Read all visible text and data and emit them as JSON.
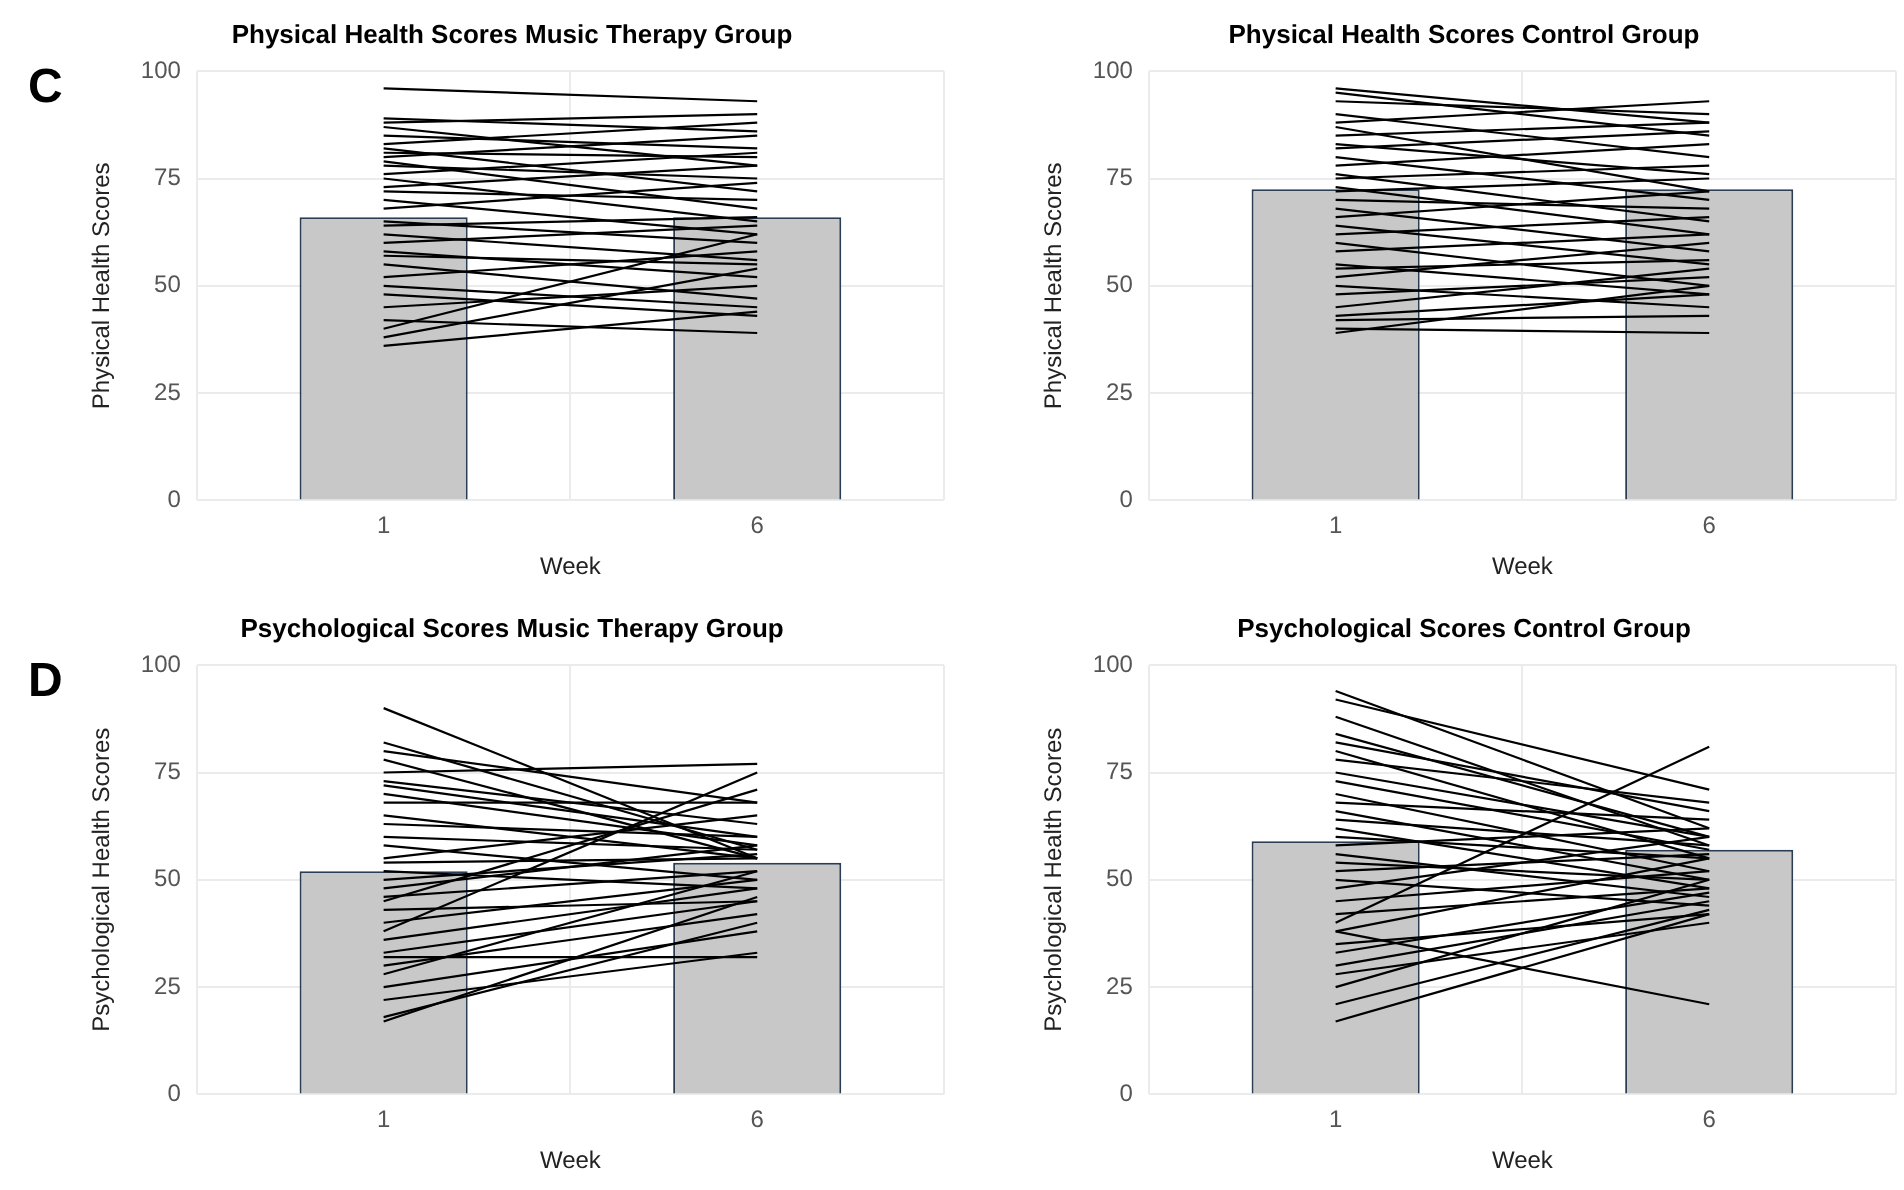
{
  "chart_data": [
    {
      "type": "bar",
      "title": "Physical Health Scores Music Therapy Group",
      "xlabel": "Week",
      "ylabel": "Physical Health Scores",
      "annotations": [
        "C"
      ],
      "categories": [
        "1",
        "6"
      ],
      "ylim": [
        0,
        100
      ],
      "yticks": [
        0,
        25,
        50,
        75,
        100
      ],
      "grid": true,
      "legend": false,
      "series": [
        {
          "color": "#c8c8c8",
          "values": [
            66,
            66
          ]
        },
        {
          "type": "line",
          "color": "#000000",
          "values": [
            96,
            93
          ]
        },
        {
          "type": "line",
          "color": "#000000",
          "values": [
            89,
            86
          ]
        },
        {
          "type": "line",
          "color": "#000000",
          "values": [
            88,
            90
          ]
        },
        {
          "type": "line",
          "color": "#000000",
          "values": [
            87,
            78
          ]
        },
        {
          "type": "line",
          "color": "#000000",
          "values": [
            85,
            82
          ]
        },
        {
          "type": "line",
          "color": "#000000",
          "values": [
            83,
            88
          ]
        },
        {
          "type": "line",
          "color": "#000000",
          "values": [
            82,
            72
          ]
        },
        {
          "type": "line",
          "color": "#000000",
          "values": [
            81,
            80
          ]
        },
        {
          "type": "line",
          "color": "#000000",
          "values": [
            80,
            85
          ]
        },
        {
          "type": "line",
          "color": "#000000",
          "values": [
            79,
            68
          ]
        },
        {
          "type": "line",
          "color": "#000000",
          "values": [
            78,
            75
          ]
        },
        {
          "type": "line",
          "color": "#000000",
          "values": [
            76,
            81
          ]
        },
        {
          "type": "line",
          "color": "#000000",
          "values": [
            75,
            65
          ]
        },
        {
          "type": "line",
          "color": "#000000",
          "values": [
            73,
            78
          ]
        },
        {
          "type": "line",
          "color": "#000000",
          "values": [
            72,
            70
          ]
        },
        {
          "type": "line",
          "color": "#000000",
          "values": [
            70,
            62
          ]
        },
        {
          "type": "line",
          "color": "#000000",
          "values": [
            68,
            74
          ]
        },
        {
          "type": "line",
          "color": "#000000",
          "values": [
            65,
            60
          ]
        },
        {
          "type": "line",
          "color": "#000000",
          "values": [
            64,
            66
          ]
        },
        {
          "type": "line",
          "color": "#000000",
          "values": [
            62,
            56
          ]
        },
        {
          "type": "line",
          "color": "#000000",
          "values": [
            60,
            64
          ]
        },
        {
          "type": "line",
          "color": "#000000",
          "values": [
            58,
            52
          ]
        },
        {
          "type": "line",
          "color": "#000000",
          "values": [
            57,
            55
          ]
        },
        {
          "type": "line",
          "color": "#000000",
          "values": [
            55,
            47
          ]
        },
        {
          "type": "line",
          "color": "#000000",
          "values": [
            52,
            58
          ]
        },
        {
          "type": "line",
          "color": "#000000",
          "values": [
            50,
            45
          ]
        },
        {
          "type": "line",
          "color": "#000000",
          "values": [
            48,
            43
          ]
        },
        {
          "type": "line",
          "color": "#000000",
          "values": [
            45,
            50
          ]
        },
        {
          "type": "line",
          "color": "#000000",
          "values": [
            42,
            39
          ]
        },
        {
          "type": "line",
          "color": "#000000",
          "values": [
            38,
            54
          ]
        },
        {
          "type": "line",
          "color": "#000000",
          "values": [
            36,
            44
          ]
        },
        {
          "type": "line",
          "color": "#000000",
          "values": [
            40,
            62
          ]
        }
      ]
    },
    {
      "type": "bar",
      "title": "Physical Health Scores Control Group",
      "xlabel": "Week",
      "ylabel": "Physical Health Scores",
      "categories": [
        "1",
        "6"
      ],
      "ylim": [
        0,
        100
      ],
      "yticks": [
        0,
        25,
        50,
        75,
        100
      ],
      "grid": true,
      "legend": false,
      "series": [
        {
          "color": "#c8c8c8",
          "values": [
            72.5,
            72.5
          ]
        },
        {
          "type": "line",
          "color": "#000000",
          "values": [
            96,
            88
          ]
        },
        {
          "type": "line",
          "color": "#000000",
          "values": [
            95,
            85
          ]
        },
        {
          "type": "line",
          "color": "#000000",
          "values": [
            93,
            90
          ]
        },
        {
          "type": "line",
          "color": "#000000",
          "values": [
            90,
            80
          ]
        },
        {
          "type": "line",
          "color": "#000000",
          "values": [
            88,
            93
          ]
        },
        {
          "type": "line",
          "color": "#000000",
          "values": [
            87,
            72
          ]
        },
        {
          "type": "line",
          "color": "#000000",
          "values": [
            85,
            88
          ]
        },
        {
          "type": "line",
          "color": "#000000",
          "values": [
            83,
            76
          ]
        },
        {
          "type": "line",
          "color": "#000000",
          "values": [
            82,
            86
          ]
        },
        {
          "type": "line",
          "color": "#000000",
          "values": [
            80,
            70
          ]
        },
        {
          "type": "line",
          "color": "#000000",
          "values": [
            78,
            83
          ]
        },
        {
          "type": "line",
          "color": "#000000",
          "values": [
            76,
            65
          ]
        },
        {
          "type": "line",
          "color": "#000000",
          "values": [
            75,
            78
          ]
        },
        {
          "type": "line",
          "color": "#000000",
          "values": [
            73,
            62
          ]
        },
        {
          "type": "line",
          "color": "#000000",
          "values": [
            72,
            75
          ]
        },
        {
          "type": "line",
          "color": "#000000",
          "values": [
            70,
            68
          ]
        },
        {
          "type": "line",
          "color": "#000000",
          "values": [
            68,
            58
          ]
        },
        {
          "type": "line",
          "color": "#000000",
          "values": [
            66,
            72
          ]
        },
        {
          "type": "line",
          "color": "#000000",
          "values": [
            64,
            55
          ]
        },
        {
          "type": "line",
          "color": "#000000",
          "values": [
            62,
            66
          ]
        },
        {
          "type": "line",
          "color": "#000000",
          "values": [
            60,
            50
          ]
        },
        {
          "type": "line",
          "color": "#000000",
          "values": [
            58,
            62
          ]
        },
        {
          "type": "line",
          "color": "#000000",
          "values": [
            55,
            48
          ]
        },
        {
          "type": "line",
          "color": "#000000",
          "values": [
            54,
            56
          ]
        },
        {
          "type": "line",
          "color": "#000000",
          "values": [
            52,
            60
          ]
        },
        {
          "type": "line",
          "color": "#000000",
          "values": [
            50,
            45
          ]
        },
        {
          "type": "line",
          "color": "#000000",
          "values": [
            48,
            52
          ]
        },
        {
          "type": "line",
          "color": "#000000",
          "values": [
            45,
            54
          ]
        },
        {
          "type": "line",
          "color": "#000000",
          "values": [
            43,
            48
          ]
        },
        {
          "type": "line",
          "color": "#000000",
          "values": [
            42,
            43
          ]
        },
        {
          "type": "line",
          "color": "#000000",
          "values": [
            40,
            39
          ]
        },
        {
          "type": "line",
          "color": "#000000",
          "values": [
            39,
            50
          ]
        }
      ]
    },
    {
      "type": "bar",
      "title": "Psychological Scores Music Therapy Group",
      "xlabel": "Week",
      "ylabel": "Psychological Health Scores",
      "annotations": [
        "D"
      ],
      "categories": [
        "1",
        "6"
      ],
      "ylim": [
        0,
        100
      ],
      "yticks": [
        0,
        25,
        50,
        75,
        100
      ],
      "grid": true,
      "legend": false,
      "series": [
        {
          "color": "#c8c8c8",
          "values": [
            52,
            54
          ]
        },
        {
          "type": "line",
          "color": "#000000",
          "values": [
            90,
            55
          ]
        },
        {
          "type": "line",
          "color": "#000000",
          "values": [
            82,
            57
          ]
        },
        {
          "type": "line",
          "color": "#000000",
          "values": [
            80,
            68
          ]
        },
        {
          "type": "line",
          "color": "#000000",
          "values": [
            78,
            55
          ]
        },
        {
          "type": "line",
          "color": "#000000",
          "values": [
            75,
            77
          ]
        },
        {
          "type": "line",
          "color": "#000000",
          "values": [
            73,
            63
          ]
        },
        {
          "type": "line",
          "color": "#000000",
          "values": [
            72,
            60
          ]
        },
        {
          "type": "line",
          "color": "#000000",
          "values": [
            70,
            58
          ]
        },
        {
          "type": "line",
          "color": "#000000",
          "values": [
            68,
            68
          ]
        },
        {
          "type": "line",
          "color": "#000000",
          "values": [
            65,
            55
          ]
        },
        {
          "type": "line",
          "color": "#000000",
          "values": [
            63,
            60
          ]
        },
        {
          "type": "line",
          "color": "#000000",
          "values": [
            60,
            57
          ]
        },
        {
          "type": "line",
          "color": "#000000",
          "values": [
            58,
            50
          ]
        },
        {
          "type": "line",
          "color": "#000000",
          "values": [
            55,
            65
          ]
        },
        {
          "type": "line",
          "color": "#000000",
          "values": [
            54,
            55
          ]
        },
        {
          "type": "line",
          "color": "#000000",
          "values": [
            52,
            48
          ]
        },
        {
          "type": "line",
          "color": "#000000",
          "values": [
            50,
            56
          ]
        },
        {
          "type": "line",
          "color": "#000000",
          "values": [
            48,
            58
          ]
        },
        {
          "type": "line",
          "color": "#000000",
          "values": [
            46,
            52
          ]
        },
        {
          "type": "line",
          "color": "#000000",
          "values": [
            43,
            45
          ]
        },
        {
          "type": "line",
          "color": "#000000",
          "values": [
            40,
            50
          ]
        },
        {
          "type": "line",
          "color": "#000000",
          "values": [
            38,
            75
          ]
        },
        {
          "type": "line",
          "color": "#000000",
          "values": [
            36,
            48
          ]
        },
        {
          "type": "line",
          "color": "#000000",
          "values": [
            33,
            45
          ]
        },
        {
          "type": "line",
          "color": "#000000",
          "values": [
            30,
            42
          ]
        },
        {
          "type": "line",
          "color": "#000000",
          "values": [
            28,
            52
          ]
        },
        {
          "type": "line",
          "color": "#000000",
          "values": [
            25,
            38
          ]
        },
        {
          "type": "line",
          "color": "#000000",
          "values": [
            22,
            33
          ]
        },
        {
          "type": "line",
          "color": "#000000",
          "values": [
            17,
            46
          ]
        },
        {
          "type": "line",
          "color": "#000000",
          "values": [
            18,
            40
          ]
        },
        {
          "type": "line",
          "color": "#000000",
          "values": [
            32,
            32
          ]
        },
        {
          "type": "line",
          "color": "#000000",
          "values": [
            45,
            71
          ]
        }
      ]
    },
    {
      "type": "bar",
      "title": "Psychological Scores Control Group",
      "xlabel": "Week",
      "ylabel": "Psychological Health Scores",
      "categories": [
        "1",
        "6"
      ],
      "ylim": [
        0,
        100
      ],
      "yticks": [
        0,
        25,
        50,
        75,
        100
      ],
      "grid": true,
      "legend": false,
      "series": [
        {
          "color": "#c8c8c8",
          "values": [
            59,
            57
          ]
        },
        {
          "type": "line",
          "color": "#000000",
          "values": [
            94,
            62
          ]
        },
        {
          "type": "line",
          "color": "#000000",
          "values": [
            92,
            71
          ]
        },
        {
          "type": "line",
          "color": "#000000",
          "values": [
            88,
            58
          ]
        },
        {
          "type": "line",
          "color": "#000000",
          "values": [
            84,
            60
          ]
        },
        {
          "type": "line",
          "color": "#000000",
          "values": [
            82,
            66
          ]
        },
        {
          "type": "line",
          "color": "#000000",
          "values": [
            80,
            55
          ]
        },
        {
          "type": "line",
          "color": "#000000",
          "values": [
            78,
            68
          ]
        },
        {
          "type": "line",
          "color": "#000000",
          "values": [
            75,
            60
          ]
        },
        {
          "type": "line",
          "color": "#000000",
          "values": [
            73,
            57
          ]
        },
        {
          "type": "line",
          "color": "#000000",
          "values": [
            70,
            52
          ]
        },
        {
          "type": "line",
          "color": "#000000",
          "values": [
            68,
            64
          ]
        },
        {
          "type": "line",
          "color": "#000000",
          "values": [
            66,
            50
          ]
        },
        {
          "type": "line",
          "color": "#000000",
          "values": [
            64,
            58
          ]
        },
        {
          "type": "line",
          "color": "#000000",
          "values": [
            62,
            48
          ]
        },
        {
          "type": "line",
          "color": "#000000",
          "values": [
            60,
            55
          ]
        },
        {
          "type": "line",
          "color": "#000000",
          "values": [
            58,
            62
          ]
        },
        {
          "type": "line",
          "color": "#000000",
          "values": [
            56,
            46
          ]
        },
        {
          "type": "line",
          "color": "#000000",
          "values": [
            54,
            50
          ]
        },
        {
          "type": "line",
          "color": "#000000",
          "values": [
            52,
            56
          ]
        },
        {
          "type": "line",
          "color": "#000000",
          "values": [
            50,
            44
          ]
        },
        {
          "type": "line",
          "color": "#000000",
          "values": [
            48,
            60
          ]
        },
        {
          "type": "line",
          "color": "#000000",
          "values": [
            45,
            52
          ]
        },
        {
          "type": "line",
          "color": "#000000",
          "values": [
            42,
            48
          ]
        },
        {
          "type": "line",
          "color": "#000000",
          "values": [
            40,
            81
          ]
        },
        {
          "type": "line",
          "color": "#000000",
          "values": [
            38,
            21
          ]
        },
        {
          "type": "line",
          "color": "#000000",
          "values": [
            38,
            55
          ]
        },
        {
          "type": "line",
          "color": "#000000",
          "values": [
            35,
            42
          ]
        },
        {
          "type": "line",
          "color": "#000000",
          "values": [
            33,
            47
          ]
        },
        {
          "type": "line",
          "color": "#000000",
          "values": [
            30,
            45
          ]
        },
        {
          "type": "line",
          "color": "#000000",
          "values": [
            28,
            40
          ]
        },
        {
          "type": "line",
          "color": "#000000",
          "values": [
            25,
            50
          ]
        },
        {
          "type": "line",
          "color": "#000000",
          "values": [
            21,
            43
          ]
        },
        {
          "type": "line",
          "color": "#000000",
          "values": [
            17,
            42
          ]
        }
      ]
    }
  ]
}
